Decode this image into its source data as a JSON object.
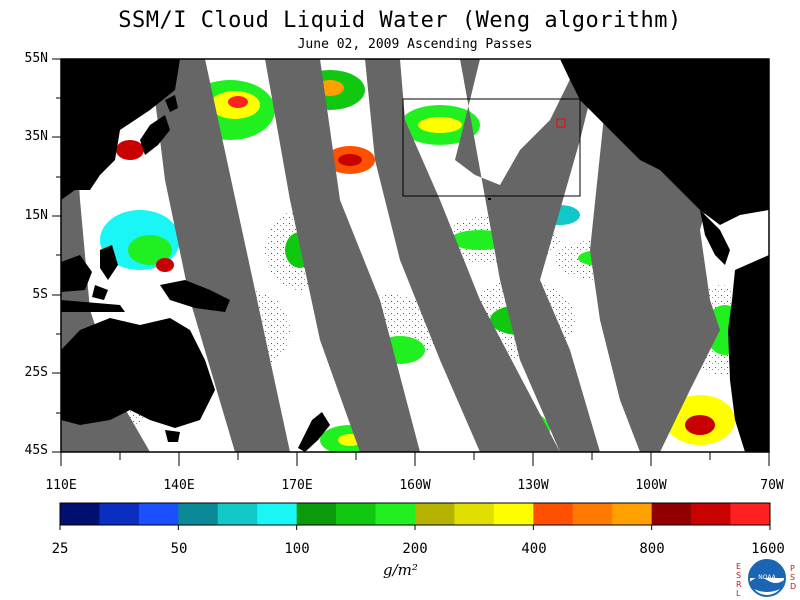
{
  "map": {
    "title": "SSM/I Cloud Liquid Water (Weng algorithm)",
    "subtitle": "June 02, 2009  Ascending Passes",
    "lat_labels": [
      "55N",
      "35N",
      "15N",
      "5S",
      "25S",
      "45S"
    ],
    "lon_labels": [
      "110E",
      "140E",
      "170E",
      "160W",
      "130W",
      "100W",
      "70W"
    ],
    "colorbar": {
      "labels": [
        "25",
        "50",
        "100",
        "200",
        "400",
        "800",
        "1600"
      ],
      "colors": [
        "#001070",
        "#0a2ec0",
        "#1a50ff",
        "#0a8a96",
        "#10c8c8",
        "#1af5f5",
        "#0a9a0a",
        "#10c810",
        "#20f020",
        "#b4b400",
        "#e0e000",
        "#ffff00",
        "#ff5000",
        "#ff7a00",
        "#ffa000",
        "#900000",
        "#c80000",
        "#ff2020"
      ],
      "units": "g/m²"
    },
    "logo": {
      "text": "NOAA",
      "left_letters": "ESRL",
      "right_letters": "PSD"
    }
  }
}
